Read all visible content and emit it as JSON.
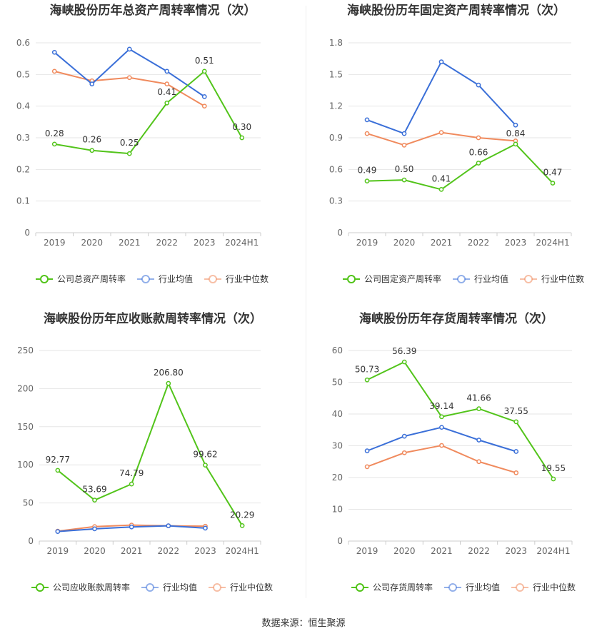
{
  "source_text": "数据来源：恒生聚源",
  "colors": {
    "company": "#52c41a",
    "avg": "#3a6fd8",
    "median": "#f08a5d"
  },
  "chart_data": [
    {
      "type": "line",
      "title": "海峡股份历年总资产周转率情况（次）",
      "categories": [
        "2019",
        "2020",
        "2021",
        "2022",
        "2023",
        "2024H1"
      ],
      "ylim": [
        0,
        0.6
      ],
      "yticks": [
        "0",
        "0.1",
        "0.2",
        "0.3",
        "0.4",
        "0.5",
        "0.6"
      ],
      "legend_position": "bottom",
      "series": [
        {
          "name": "公司总资产周转率",
          "values": [
            0.28,
            0.26,
            0.25,
            0.41,
            0.51,
            0.3
          ],
          "labels": [
            "0.28",
            "0.26",
            "0.25",
            "0.41",
            "0.51",
            "0.30"
          ]
        },
        {
          "name": "行业均值",
          "values": [
            0.57,
            0.47,
            0.58,
            0.51,
            0.43,
            null
          ]
        },
        {
          "name": "行业中位数",
          "values": [
            0.51,
            0.48,
            0.49,
            0.47,
            0.4,
            null
          ]
        }
      ]
    },
    {
      "type": "line",
      "title": "海峡股份历年固定资产周转率情况（次）",
      "categories": [
        "2019",
        "2020",
        "2021",
        "2022",
        "2023",
        "2024H1"
      ],
      "ylim": [
        0,
        1.8
      ],
      "yticks": [
        "0",
        "0.3",
        "0.6",
        "0.9",
        "1.2",
        "1.5",
        "1.8"
      ],
      "legend_position": "bottom",
      "series": [
        {
          "name": "公司固定资产周转率",
          "values": [
            0.49,
            0.5,
            0.41,
            0.66,
            0.84,
            0.47
          ],
          "labels": [
            "0.49",
            "0.50",
            "0.41",
            "0.66",
            "0.84",
            "0.47"
          ]
        },
        {
          "name": "行业均值",
          "values": [
            1.07,
            0.94,
            1.62,
            1.4,
            1.02,
            null
          ]
        },
        {
          "name": "行业中位数",
          "values": [
            0.94,
            0.83,
            0.95,
            0.9,
            0.87,
            null
          ]
        }
      ]
    },
    {
      "type": "line",
      "title": "海峡股份历年应收账款周转率情况（次）",
      "categories": [
        "2019",
        "2020",
        "2021",
        "2022",
        "2023",
        "2024H1"
      ],
      "ylim": [
        0,
        250
      ],
      "yticks": [
        "0",
        "50",
        "100",
        "150",
        "200",
        "250"
      ],
      "legend_position": "bottom",
      "series": [
        {
          "name": "公司应收账款周转率",
          "values": [
            92.77,
            53.69,
            74.79,
            206.8,
            99.62,
            20.29
          ],
          "labels": [
            "92.77",
            "53.69",
            "74.79",
            "206.80",
            "99.62",
            "20.29"
          ]
        },
        {
          "name": "行业均值",
          "values": [
            12.5,
            16.0,
            18.5,
            20.0,
            17.0,
            null
          ]
        },
        {
          "name": "行业中位数",
          "values": [
            13.0,
            19.0,
            21.0,
            20.0,
            19.5,
            null
          ]
        }
      ]
    },
    {
      "type": "line",
      "title": "海峡股份历年存货周转率情况（次）",
      "categories": [
        "2019",
        "2020",
        "2021",
        "2022",
        "2023",
        "2024H1"
      ],
      "ylim": [
        0,
        60
      ],
      "yticks": [
        "0",
        "10",
        "20",
        "30",
        "40",
        "50",
        "60"
      ],
      "legend_position": "bottom",
      "series": [
        {
          "name": "公司存货周转率",
          "values": [
            50.73,
            56.39,
            39.14,
            41.66,
            37.55,
            19.55
          ],
          "labels": [
            "50.73",
            "56.39",
            "39.14",
            "41.66",
            "37.55",
            "19.55"
          ]
        },
        {
          "name": "行业均值",
          "values": [
            28.4,
            33.0,
            35.8,
            31.8,
            28.2,
            null
          ]
        },
        {
          "name": "行业中位数",
          "values": [
            23.4,
            27.8,
            30.1,
            25.0,
            21.5,
            null
          ]
        }
      ]
    }
  ]
}
